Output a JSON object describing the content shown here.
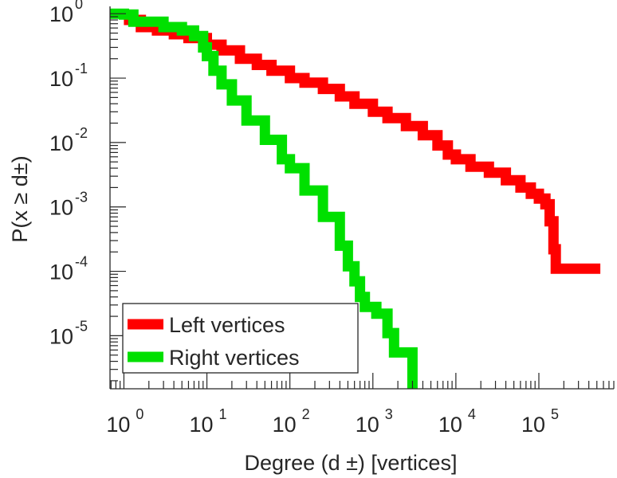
{
  "chart_data": {
    "type": "line",
    "title": "",
    "xlabel": "Degree (d ±) [vertices]",
    "ylabel": "P(x ≥ d±)",
    "xscale": "log",
    "yscale": "log",
    "xlim": [
      0.68,
      800000
    ],
    "ylim": [
      1.5e-06,
      1.3
    ],
    "grid": false,
    "legend_position": "bottom-left",
    "x_ticks": [
      {
        "base": "10",
        "exp": "0",
        "value": 1
      },
      {
        "base": "10",
        "exp": "1",
        "value": 10
      },
      {
        "base": "10",
        "exp": "2",
        "value": 100
      },
      {
        "base": "10",
        "exp": "3",
        "value": 1000
      },
      {
        "base": "10",
        "exp": "4",
        "value": 10000
      },
      {
        "base": "10",
        "exp": "5",
        "value": 100000
      }
    ],
    "y_ticks": [
      {
        "base": "10",
        "exp": "0",
        "value": 1
      },
      {
        "base": "10",
        "exp": "-1",
        "value": 0.1
      },
      {
        "base": "10",
        "exp": "-2",
        "value": 0.01
      },
      {
        "base": "10",
        "exp": "-3",
        "value": 0.001
      },
      {
        "base": "10",
        "exp": "-4",
        "value": 0.0001
      },
      {
        "base": "10",
        "exp": "-5",
        "value": 1e-05
      }
    ],
    "series": [
      {
        "name": "Left vertices",
        "color": "#ff0000",
        "points": [
          [
            1,
            0.8
          ],
          [
            1.6,
            0.62
          ],
          [
            2.5,
            0.55
          ],
          [
            4,
            0.48
          ],
          [
            6,
            0.42
          ],
          [
            10,
            0.33
          ],
          [
            15,
            0.27
          ],
          [
            25,
            0.2
          ],
          [
            40,
            0.16
          ],
          [
            60,
            0.13
          ],
          [
            100,
            0.1
          ],
          [
            150,
            0.085
          ],
          [
            250,
            0.068
          ],
          [
            400,
            0.052
          ],
          [
            600,
            0.04
          ],
          [
            1000,
            0.03
          ],
          [
            1500,
            0.024
          ],
          [
            2500,
            0.018
          ],
          [
            4000,
            0.013
          ],
          [
            6000,
            0.009
          ],
          [
            8000,
            0.0065
          ],
          [
            10000,
            0.0055
          ],
          [
            15000,
            0.0042
          ],
          [
            25000,
            0.0034
          ],
          [
            40000,
            0.0026
          ],
          [
            60000,
            0.002
          ],
          [
            80000,
            0.0016
          ],
          [
            100000,
            0.00135
          ],
          [
            120000,
            0.0011
          ],
          [
            135000,
            0.0006
          ],
          [
            150000,
            0.00022
          ],
          [
            160000,
            0.00011
          ],
          [
            550000,
            0.00011
          ]
        ]
      },
      {
        "name": "Right vertices",
        "color": "#00e000",
        "points": [
          [
            0.68,
            1
          ],
          [
            1,
            0.97
          ],
          [
            1.3,
            0.75
          ],
          [
            3,
            0.62
          ],
          [
            5,
            0.55
          ],
          [
            7,
            0.45
          ],
          [
            9,
            0.3
          ],
          [
            10,
            0.22
          ],
          [
            12,
            0.13
          ],
          [
            15,
            0.08
          ],
          [
            20,
            0.045
          ],
          [
            30,
            0.022
          ],
          [
            50,
            0.011
          ],
          [
            80,
            0.0055
          ],
          [
            100,
            0.004
          ],
          [
            150,
            0.0018
          ],
          [
            250,
            0.0007
          ],
          [
            400,
            0.00025
          ],
          [
            500,
            0.00012
          ],
          [
            600,
            7e-05
          ],
          [
            700,
            4e-05
          ],
          [
            800,
            2.8e-05
          ],
          [
            1100,
            2.2e-05
          ],
          [
            1500,
            1.1e-05
          ],
          [
            1800,
            5.5e-06
          ],
          [
            2700,
            5.5e-06
          ],
          [
            3000,
            1.5e-06
          ]
        ]
      }
    ]
  }
}
